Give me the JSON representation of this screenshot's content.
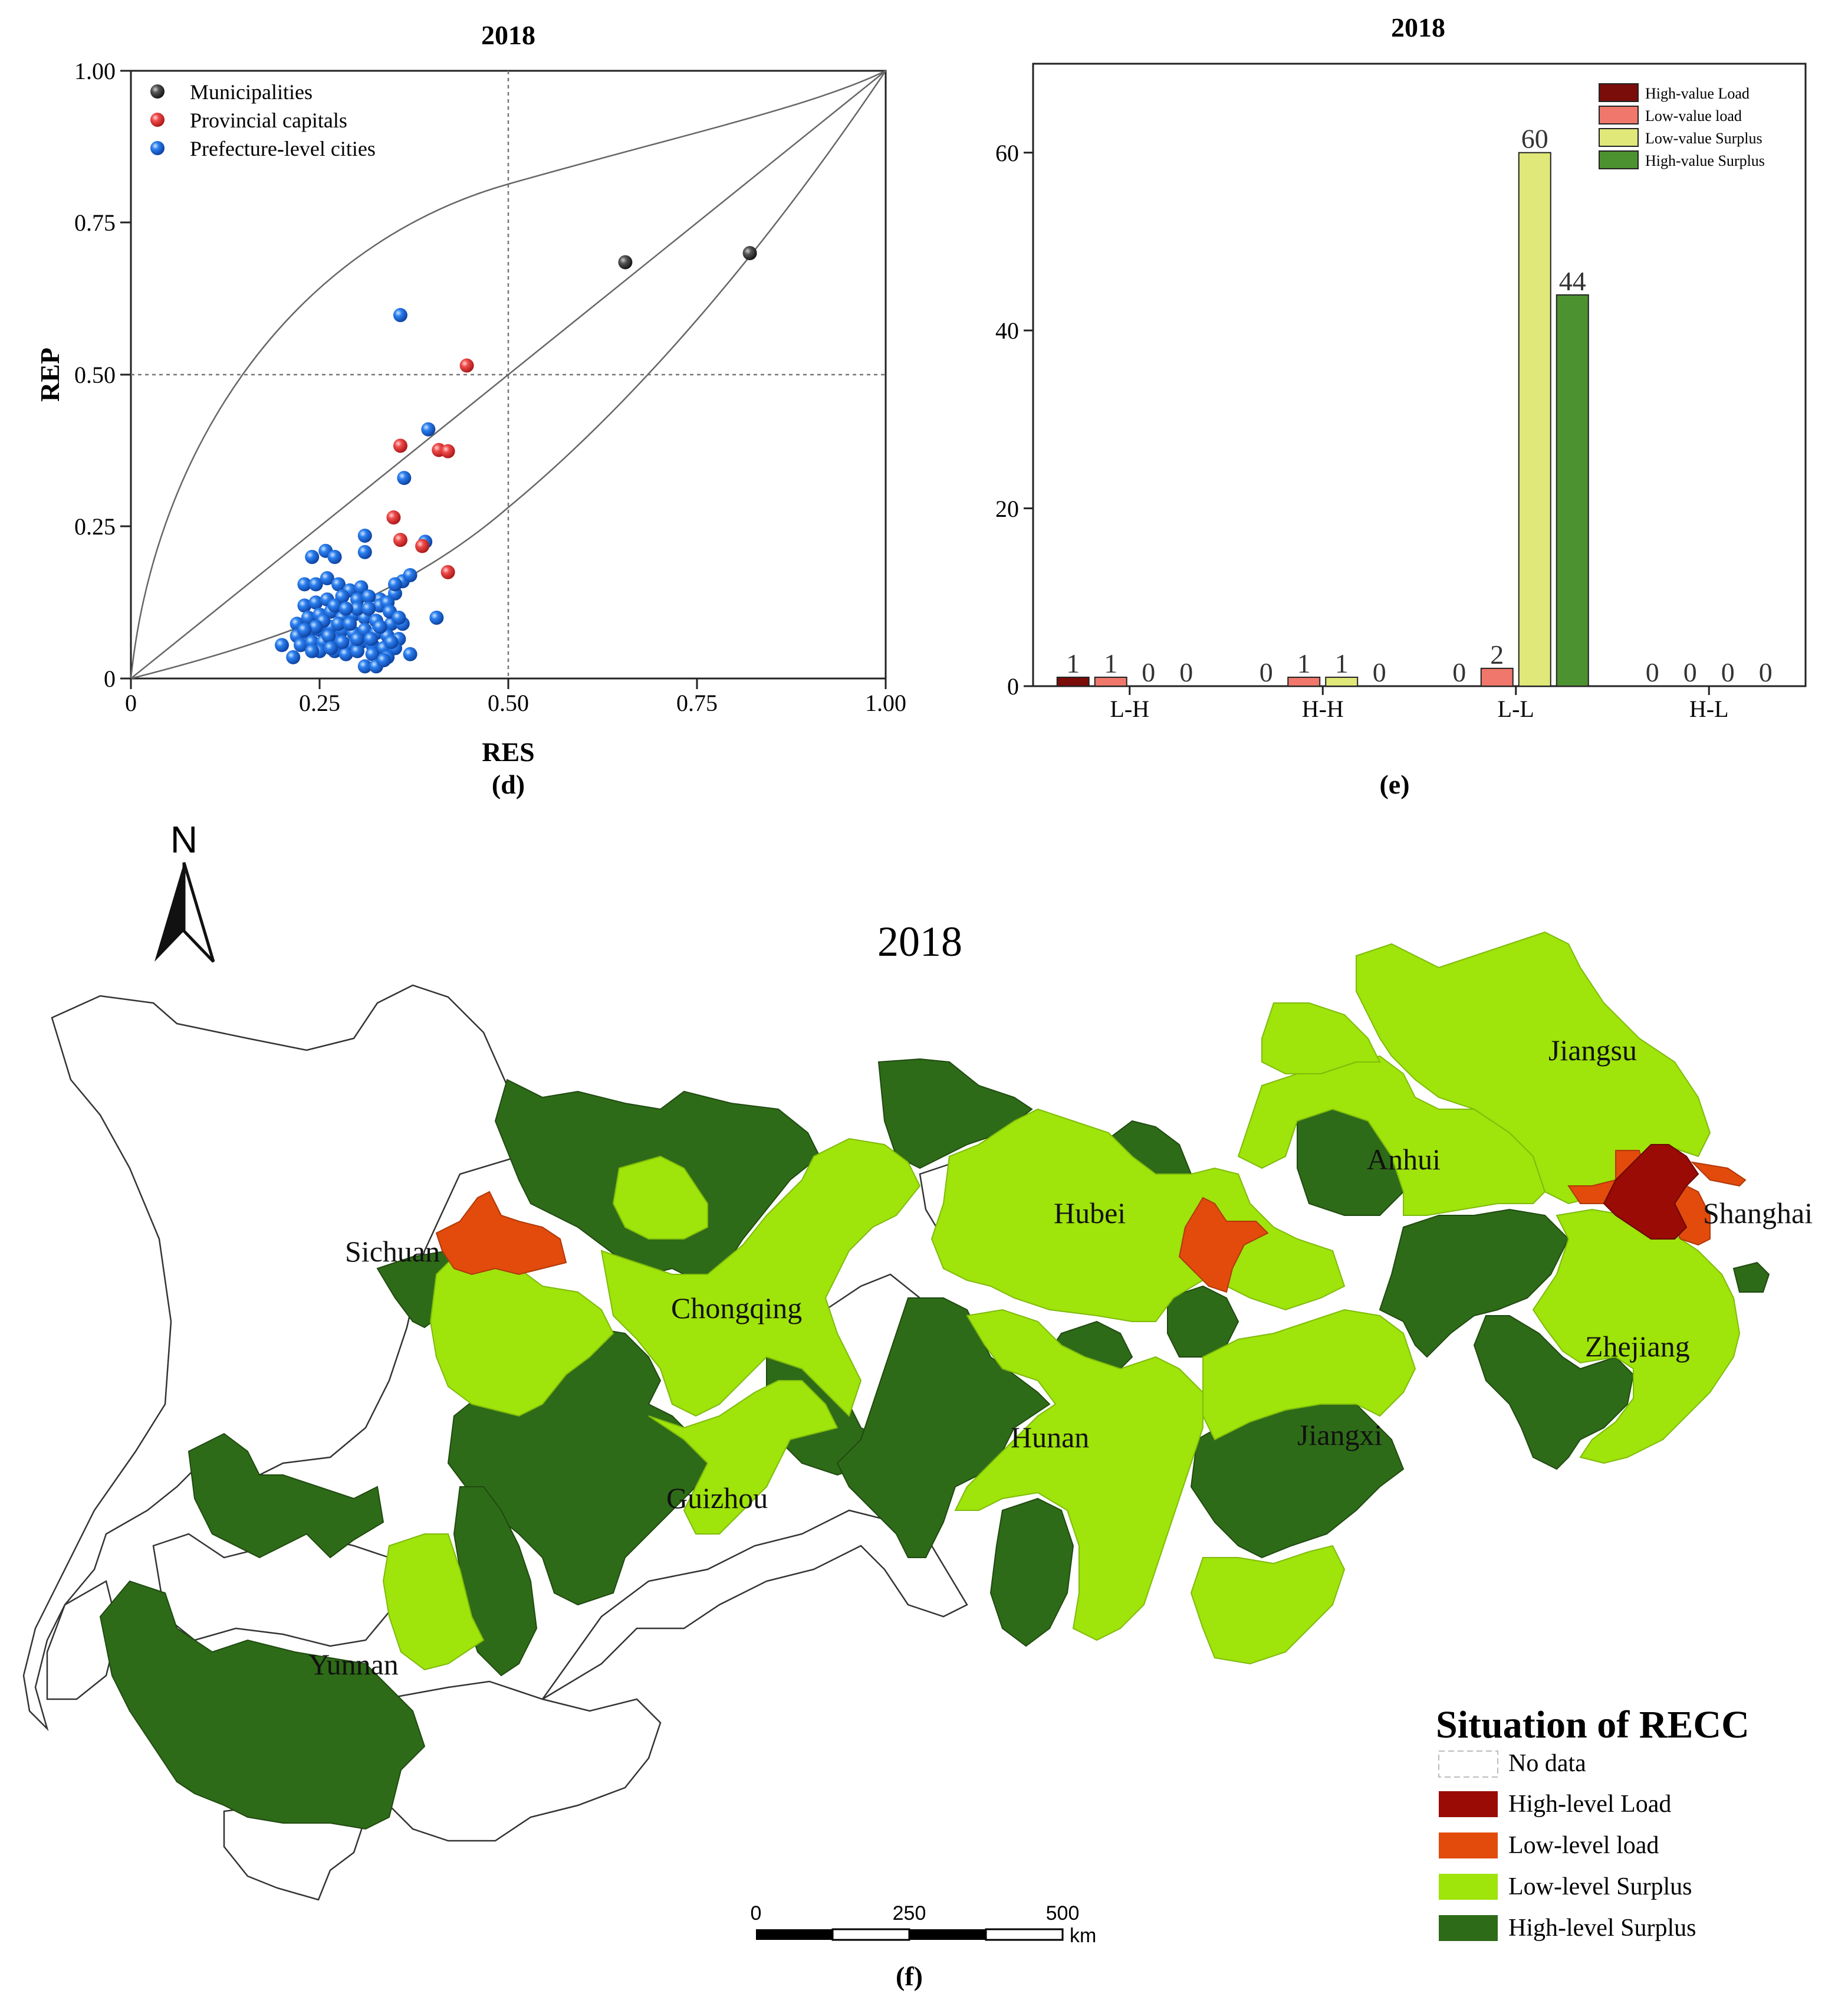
{
  "scatter_panel": {
    "title": "2018",
    "caption": "(d)",
    "legend": [
      {
        "label": "Municipalities",
        "color": "#3c3c3c"
      },
      {
        "label": "Provincial capitals",
        "color": "#e53a3a"
      },
      {
        "label": "Prefecture-level cities",
        "color": "#1f6fd6"
      }
    ],
    "x_ticks": [
      "0",
      "0.25",
      "0.50",
      "0.75",
      "1.00"
    ],
    "y_ticks": [
      "0",
      "0.25",
      "0.50",
      "0.75",
      "1.00"
    ]
  },
  "bar_panel": {
    "title": "2018",
    "caption": "(e)",
    "y_ticks": [
      "0",
      "20",
      "40",
      "60"
    ]
  },
  "map_panel": {
    "title": "2018",
    "caption": "(f)",
    "north_label": "N",
    "provinces": [
      "Sichuan",
      "Chongqing",
      "Hubei",
      "Hunan",
      "Guizhou",
      "Yunnan",
      "Jiangxi",
      "Anhui",
      "Jiangsu",
      "Zhejiang",
      "Shanghai"
    ],
    "legend_title": "Situation of RECC",
    "legend": [
      {
        "label": "No data",
        "color": "#ffffff"
      },
      {
        "label": "High-level Load",
        "color": "#9a0b06"
      },
      {
        "label": "Low-level load",
        "color": "#e24b0c"
      },
      {
        "label": "Low-level Surplus",
        "color": "#9fe40a"
      },
      {
        "label": "High-level Surplus",
        "color": "#2e6b18"
      }
    ],
    "scale_ticks": [
      "0",
      "250",
      "500"
    ],
    "scale_unit": "km"
  },
  "chart_data": [
    {
      "type": "scatter",
      "title": "2018",
      "xlabel": "RES",
      "ylabel": "REP",
      "xlim": [
        0,
        1
      ],
      "ylim": [
        0,
        1
      ],
      "reference_lines": {
        "x": 0.5,
        "y": 0.5
      },
      "series": [
        {
          "name": "Municipalities",
          "color": "#3c3c3c",
          "points": [
            [
              0.655,
              0.685
            ],
            [
              0.82,
              0.7
            ]
          ]
        },
        {
          "name": "Provincial capitals",
          "color": "#e53a3a",
          "points": [
            [
              0.445,
              0.515
            ],
            [
              0.357,
              0.383
            ],
            [
              0.408,
              0.376
            ],
            [
              0.42,
              0.374
            ],
            [
              0.348,
              0.265
            ],
            [
              0.357,
              0.228
            ],
            [
              0.386,
              0.218
            ],
            [
              0.42,
              0.175
            ]
          ]
        },
        {
          "name": "Prefecture-level cities",
          "color": "#1f6fd6",
          "points": [
            [
              0.357,
              0.598
            ],
            [
              0.394,
              0.41
            ],
            [
              0.362,
              0.33
            ],
            [
              0.24,
              0.2
            ],
            [
              0.258,
              0.21
            ],
            [
              0.27,
              0.2
            ],
            [
              0.31,
              0.235
            ],
            [
              0.31,
              0.208
            ],
            [
              0.39,
              0.225
            ],
            [
              0.23,
              0.155
            ],
            [
              0.245,
              0.155
            ],
            [
              0.26,
              0.165
            ],
            [
              0.275,
              0.155
            ],
            [
              0.29,
              0.145
            ],
            [
              0.305,
              0.15
            ],
            [
              0.33,
              0.13
            ],
            [
              0.35,
              0.14
            ],
            [
              0.36,
              0.16
            ],
            [
              0.37,
              0.17
            ],
            [
              0.35,
              0.155
            ],
            [
              0.23,
              0.12
            ],
            [
              0.245,
              0.125
            ],
            [
              0.26,
              0.13
            ],
            [
              0.28,
              0.135
            ],
            [
              0.3,
              0.13
            ],
            [
              0.315,
              0.135
            ],
            [
              0.33,
              0.12
            ],
            [
              0.34,
              0.125
            ],
            [
              0.22,
              0.09
            ],
            [
              0.235,
              0.1
            ],
            [
              0.25,
              0.105
            ],
            [
              0.265,
              0.11
            ],
            [
              0.28,
              0.1
            ],
            [
              0.295,
              0.105
            ],
            [
              0.31,
              0.1
            ],
            [
              0.325,
              0.095
            ],
            [
              0.345,
              0.09
            ],
            [
              0.36,
              0.09
            ],
            [
              0.405,
              0.1
            ],
            [
              0.22,
              0.07
            ],
            [
              0.235,
              0.075
            ],
            [
              0.25,
              0.08
            ],
            [
              0.265,
              0.085
            ],
            [
              0.28,
              0.08
            ],
            [
              0.295,
              0.075
            ],
            [
              0.31,
              0.08
            ],
            [
              0.325,
              0.075
            ],
            [
              0.34,
              0.07
            ],
            [
              0.355,
              0.065
            ],
            [
              0.2,
              0.055
            ],
            [
              0.225,
              0.055
            ],
            [
              0.24,
              0.06
            ],
            [
              0.255,
              0.06
            ],
            [
              0.27,
              0.065
            ],
            [
              0.29,
              0.055
            ],
            [
              0.305,
              0.06
            ],
            [
              0.32,
              0.055
            ],
            [
              0.335,
              0.05
            ],
            [
              0.35,
              0.05
            ],
            [
              0.25,
              0.045
            ],
            [
              0.27,
              0.045
            ],
            [
              0.285,
              0.04
            ],
            [
              0.3,
              0.045
            ],
            [
              0.32,
              0.04
            ],
            [
              0.34,
              0.035
            ],
            [
              0.37,
              0.04
            ],
            [
              0.215,
              0.035
            ],
            [
              0.31,
              0.02
            ],
            [
              0.325,
              0.02
            ],
            [
              0.335,
              0.03
            ],
            [
              0.255,
              0.095
            ],
            [
              0.275,
              0.09
            ],
            [
              0.29,
              0.09
            ],
            [
              0.3,
              0.115
            ],
            [
              0.315,
              0.115
            ],
            [
              0.245,
              0.085
            ],
            [
              0.262,
              0.07
            ],
            [
              0.28,
              0.06
            ],
            [
              0.3,
              0.065
            ],
            [
              0.318,
              0.065
            ],
            [
              0.33,
              0.085
            ],
            [
              0.343,
              0.11
            ],
            [
              0.27,
              0.12
            ],
            [
              0.23,
              0.08
            ],
            [
              0.285,
              0.115
            ],
            [
              0.24,
              0.045
            ],
            [
              0.355,
              0.1
            ],
            [
              0.265,
              0.05
            ],
            [
              0.345,
              0.06
            ]
          ]
        }
      ]
    },
    {
      "type": "bar",
      "title": "2018",
      "categories": [
        "L-H",
        "H-H",
        "L-L",
        "H-L"
      ],
      "ylim": [
        0,
        70
      ],
      "series": [
        {
          "name": "High-value Load",
          "color": "#7a0c0a",
          "values": [
            1,
            0,
            0,
            0
          ]
        },
        {
          "name": "Low-value load",
          "color": "#f0776b",
          "values": [
            1,
            1,
            2,
            0
          ]
        },
        {
          "name": "Low-value Surplus",
          "color": "#dfe878",
          "values": [
            0,
            1,
            60,
            0
          ]
        },
        {
          "name": "High-value Surplus",
          "color": "#4d9230",
          "values": [
            0,
            0,
            44,
            0
          ]
        }
      ]
    }
  ]
}
